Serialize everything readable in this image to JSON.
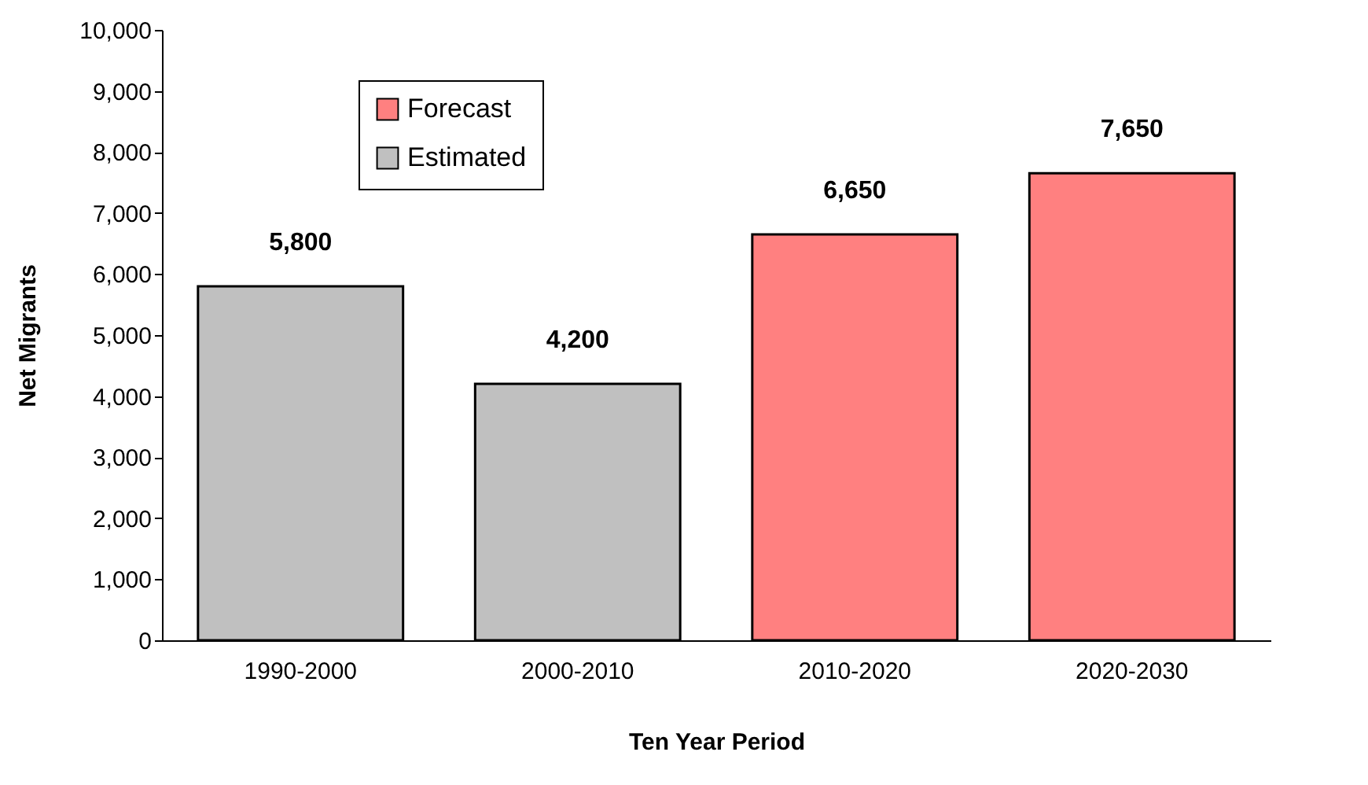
{
  "chart_data": {
    "type": "bar",
    "xlabel": "Ten Year Period",
    "ylabel": "Net Migrants",
    "categories": [
      "1990-2000",
      "2000-2010",
      "2010-2020",
      "2020-2030"
    ],
    "series": [
      {
        "name": "Forecast",
        "color": "#ff8080",
        "values": [
          null,
          null,
          6650,
          7650
        ],
        "value_labels": [
          null,
          null,
          "6,650",
          "7,650"
        ]
      },
      {
        "name": "Estimated",
        "color": "#c0c0c0",
        "values": [
          5800,
          4200,
          null,
          null
        ],
        "value_labels": [
          "5,800",
          "4,200",
          null,
          null
        ]
      }
    ],
    "ylim": [
      0,
      10000
    ],
    "yticks": [
      0,
      {
        "value": 1000,
        "label": "1,000"
      },
      {
        "value": 2000,
        "label": "2,000"
      },
      {
        "value": 3000,
        "label": "3,000"
      },
      {
        "value": 4000,
        "label": "4,000"
      },
      {
        "value": 5000,
        "label": "5,000"
      },
      {
        "value": 6000,
        "label": "6,000"
      },
      {
        "value": 7000,
        "label": "7,000"
      },
      {
        "value": 8000,
        "label": "8,000"
      },
      {
        "value": 9000,
        "label": "9,000"
      },
      {
        "value": 10000,
        "label": "10,000"
      }
    ],
    "grid": false,
    "legend": "top left"
  }
}
